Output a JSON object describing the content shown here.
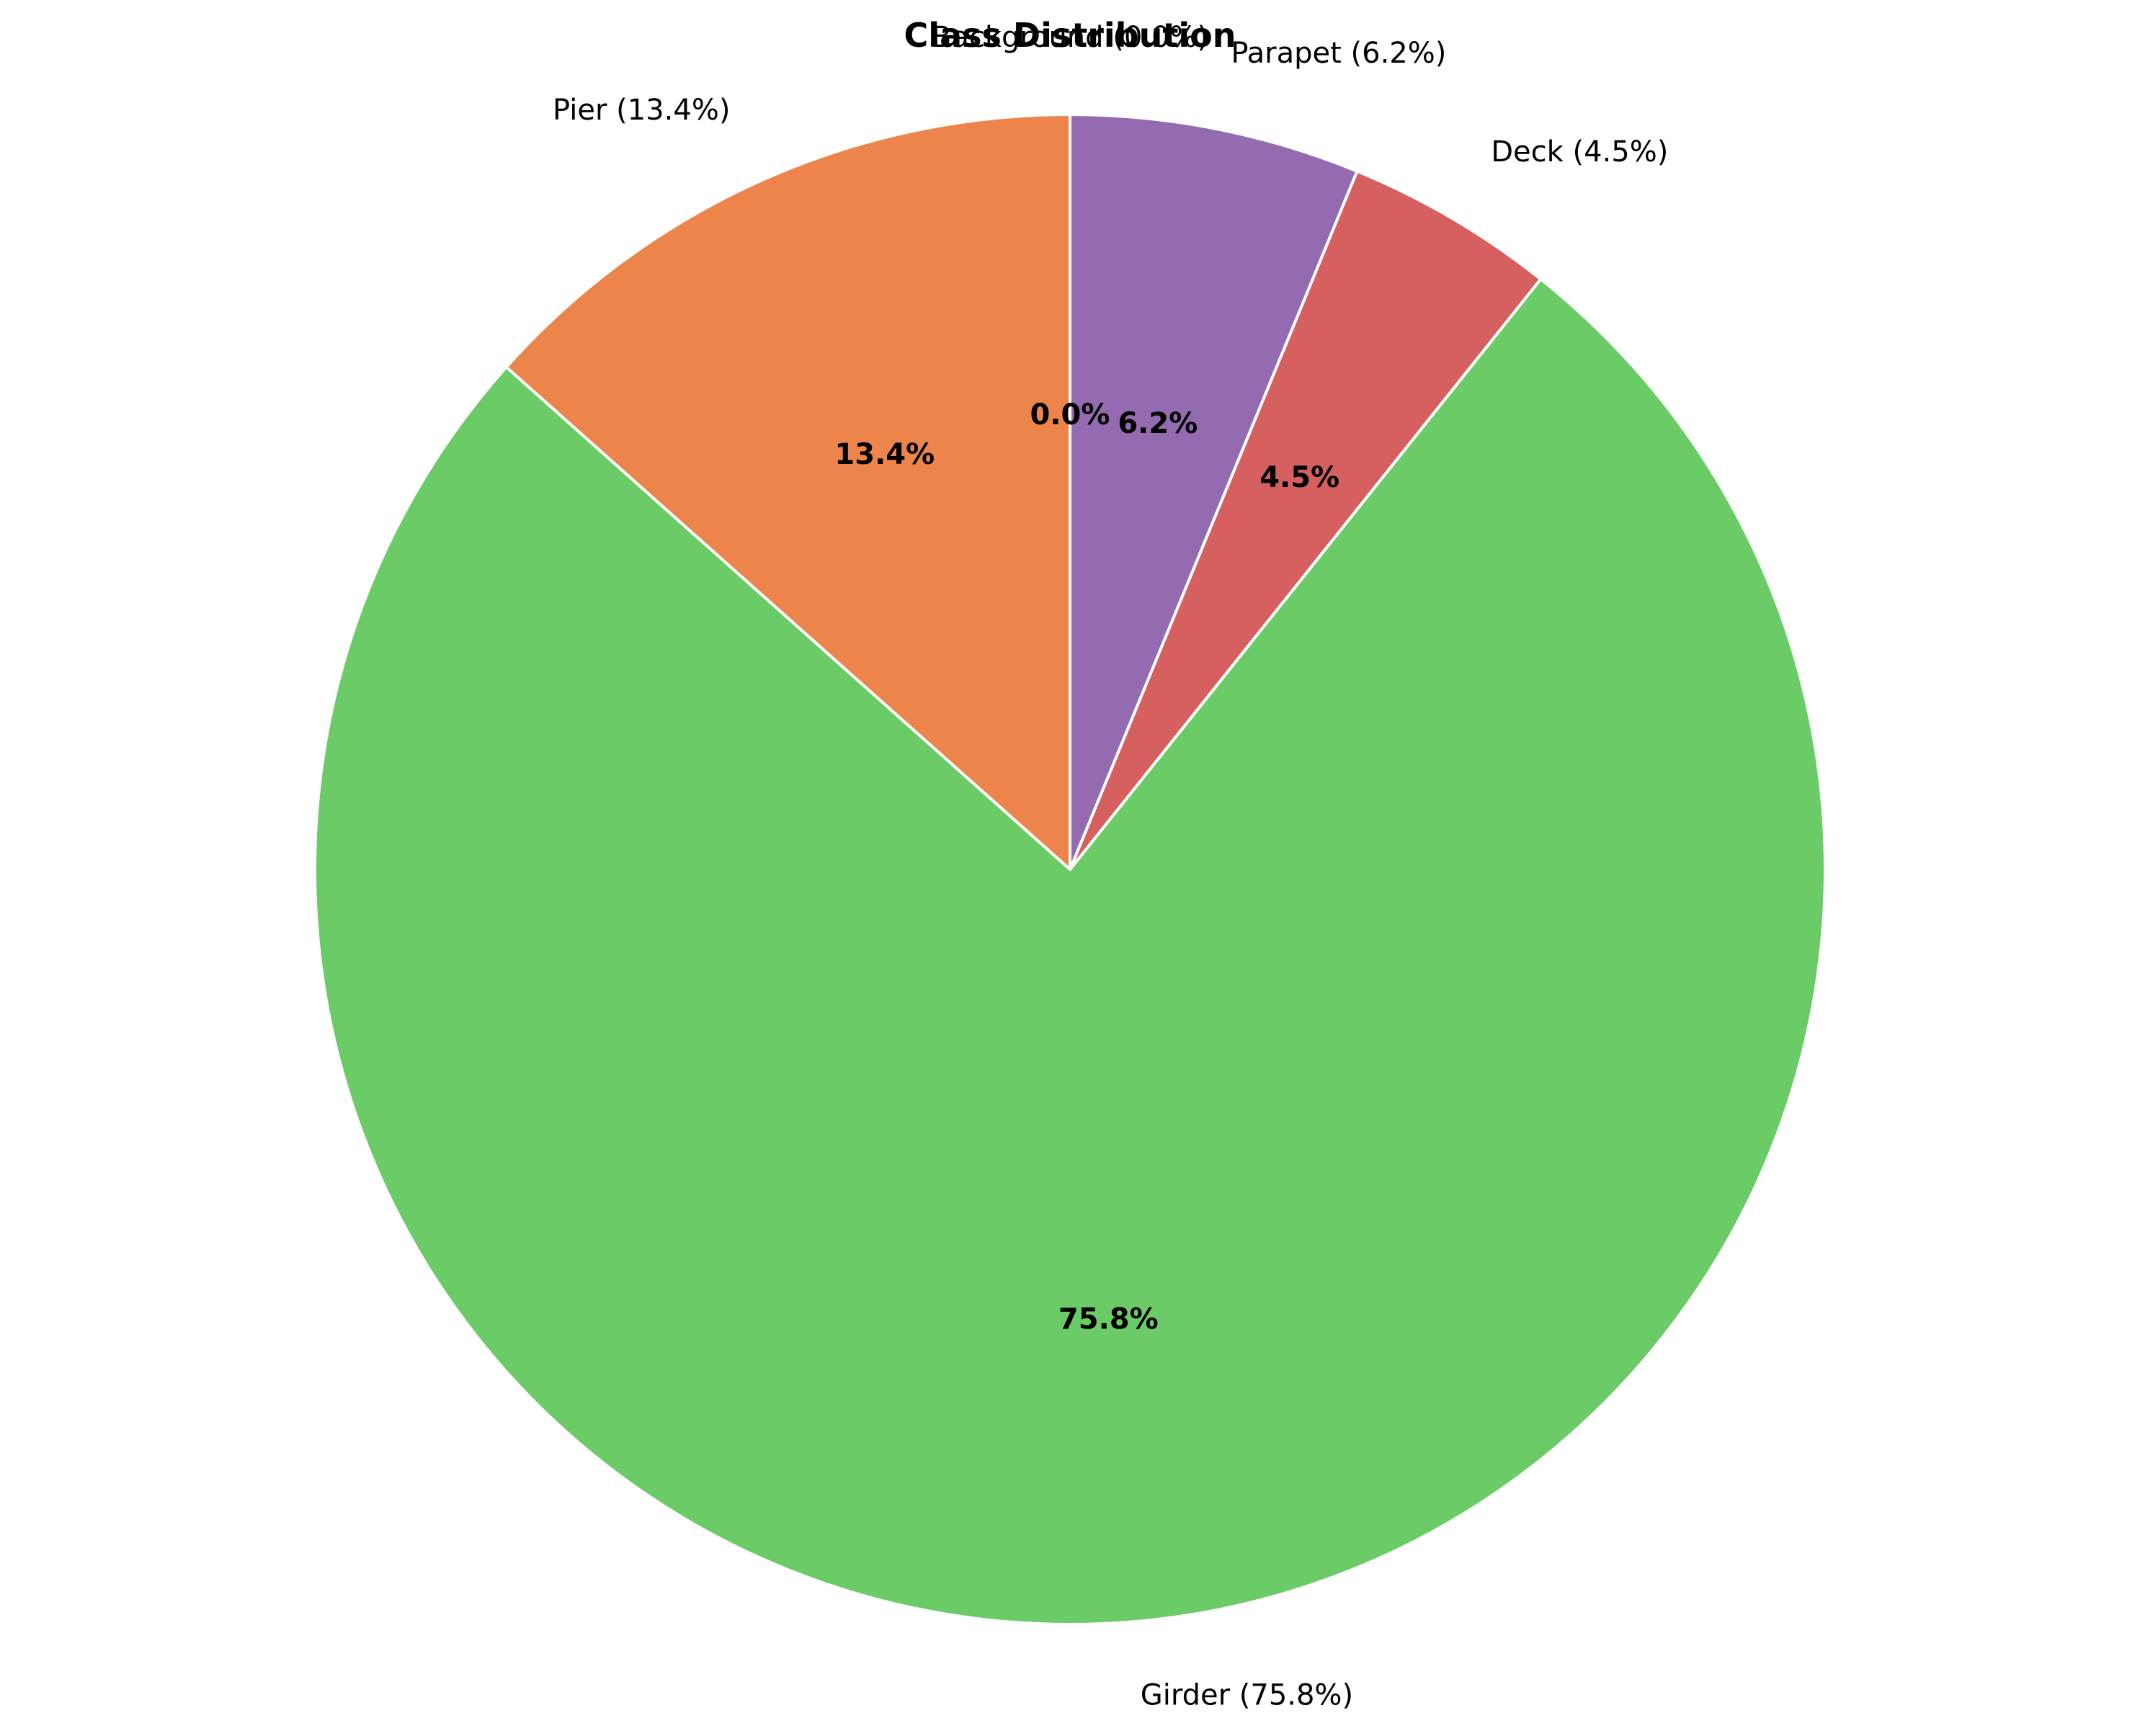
{
  "chart_data": {
    "type": "pie",
    "title": "Class Distribution",
    "start_angle_deg": 90,
    "direction": "counterclockwise",
    "slices": [
      {
        "name": "Background",
        "value": 0.0,
        "label": "Background (0.0%)",
        "pct_label": "0.0%",
        "color": "#3b75af"
      },
      {
        "name": "Pier",
        "value": 13.4,
        "label": "Pier (13.4%)",
        "pct_label": "13.4%",
        "color": "#ed844c"
      },
      {
        "name": "Girder",
        "value": 75.8,
        "label": "Girder (75.8%)",
        "pct_label": "75.8%",
        "color": "#6bcc67"
      },
      {
        "name": "Deck",
        "value": 4.5,
        "label": "Deck (4.5%)",
        "pct_label": "4.5%",
        "color": "#d65f5f"
      },
      {
        "name": "Parapet",
        "value": 6.2,
        "label": "Parapet (6.2%)",
        "pct_label": "6.2%",
        "color": "#946bb0"
      }
    ]
  }
}
